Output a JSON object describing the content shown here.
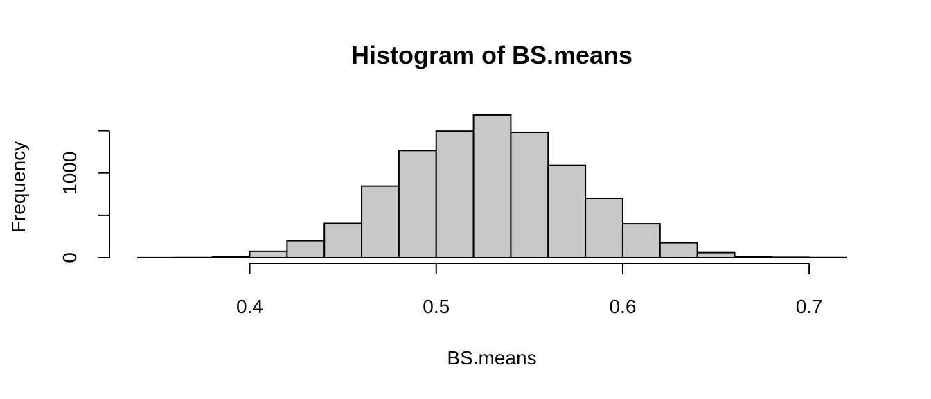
{
  "chart_data": {
    "type": "bar",
    "title": "Histogram of BS.means",
    "xlabel": "BS.means",
    "ylabel": "Frequency",
    "bin_edges": [
      0.34,
      0.36,
      0.38,
      0.4,
      0.42,
      0.44,
      0.46,
      0.48,
      0.5,
      0.52,
      0.54,
      0.56,
      0.58,
      0.6,
      0.62,
      0.64,
      0.66,
      0.68,
      0.7,
      0.72
    ],
    "values": [
      1,
      2,
      15,
      75,
      200,
      405,
      845,
      1265,
      1495,
      1685,
      1480,
      1090,
      695,
      400,
      175,
      60,
      12,
      5,
      2
    ],
    "xlim": [
      0.34,
      0.72
    ],
    "ylim": [
      0,
      1750
    ],
    "x_ticks": [
      0.4,
      0.5,
      0.6,
      0.7
    ],
    "x_tick_labels": [
      "0.4",
      "0.5",
      "0.6",
      "0.7"
    ],
    "y_ticks": [
      0,
      500,
      1000,
      1500
    ],
    "y_tick_labels": [
      "0",
      "",
      "1000",
      ""
    ],
    "grid": false,
    "legend": "none",
    "bar_color": "#c8c8c8",
    "edge_color": "#000000"
  }
}
